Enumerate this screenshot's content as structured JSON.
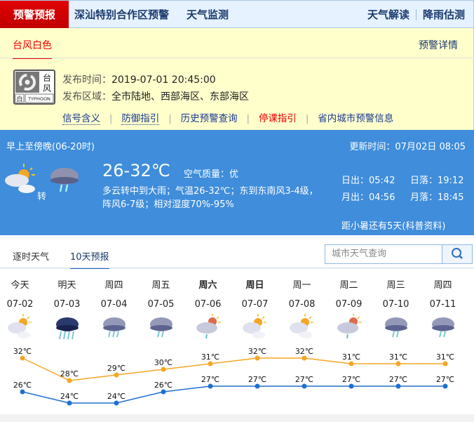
{
  "nav": {
    "active": "预警预报",
    "items": [
      "深汕特别合作区预警",
      "天气监测"
    ],
    "right": [
      "天气解读",
      "降雨估测"
    ]
  },
  "warning": {
    "tab": "台风白色",
    "detail_link": "预警详情",
    "badge": {
      "cn": "台风",
      "level": "白",
      "en": "TYPHOON"
    },
    "time_label": "发布时间：",
    "time": "2019-07-01 20:45:00",
    "area_label": "发布区域：",
    "area": "全市陆地、西部海区、东部海区",
    "links": [
      {
        "label": "信号含义",
        "color": "#1a3a8e"
      },
      {
        "label": "防御指引",
        "color": "#1a3a8e"
      },
      {
        "label": "历史预警查询",
        "color": "#1a3a8e"
      },
      {
        "label": "停课指引",
        "color": "#e00000"
      },
      {
        "label": "省内城市预警信息",
        "color": "#1a3a8e"
      }
    ]
  },
  "today": {
    "period": "早上至傍晚(06-20时)",
    "update": "更新时间：07月02日 08:05",
    "icon_from": "cloudy-icon",
    "turn": "转",
    "icon_to": "moderate-rain-icon",
    "temp": "26-32℃",
    "aqi_label": "空气质量：",
    "aqi": "优",
    "desc1": "多云转中到大雨；气温26-32℃；东到东南风3-4级，",
    "desc2": "阵风6-7级；相对湿度70%-95%",
    "sunrise": "日出：05:42",
    "sunset": "日落：19:12",
    "moonrise": "月出：04:56",
    "moonset": "月落：18:45",
    "term": "距小暑还有5天(科普资料)"
  },
  "tabs": [
    {
      "label": "逐时天气"
    },
    {
      "label": "10天预报"
    }
  ],
  "search": {
    "placeholder": "城市天气查询"
  },
  "colors": {
    "high": "#f5a623",
    "low": "#1f6fd1",
    "blue_panel": "#3f8ddb"
  },
  "forecast": [
    {
      "day": "今天",
      "date": "07-02",
      "icon": "cloudy",
      "high": 32,
      "low": 26,
      "bold": false
    },
    {
      "day": "明天",
      "date": "07-03",
      "icon": "heavy-rain",
      "high": 28,
      "low": 24,
      "bold": false
    },
    {
      "day": "周四",
      "date": "07-04",
      "icon": "moderate-rain",
      "high": 29,
      "low": 24,
      "bold": false
    },
    {
      "day": "周五",
      "date": "07-05",
      "icon": "light-rain",
      "high": 30,
      "low": 26,
      "bold": false
    },
    {
      "day": "周六",
      "date": "07-06",
      "icon": "shower",
      "high": 31,
      "low": 27,
      "bold": true
    },
    {
      "day": "周日",
      "date": "07-07",
      "icon": "cloudy",
      "high": 32,
      "low": 27,
      "bold": true
    },
    {
      "day": "周一",
      "date": "07-08",
      "icon": "cloudy",
      "high": 32,
      "low": 27,
      "bold": false
    },
    {
      "day": "周二",
      "date": "07-09",
      "icon": "shower",
      "high": 31,
      "low": 27,
      "bold": false
    },
    {
      "day": "周三",
      "date": "07-10",
      "icon": "light-rain",
      "high": 31,
      "low": 27,
      "bold": false
    },
    {
      "day": "周四",
      "date": "07-11",
      "icon": "light-rain",
      "high": 31,
      "low": 27,
      "bold": false
    }
  ],
  "unit": "℃"
}
